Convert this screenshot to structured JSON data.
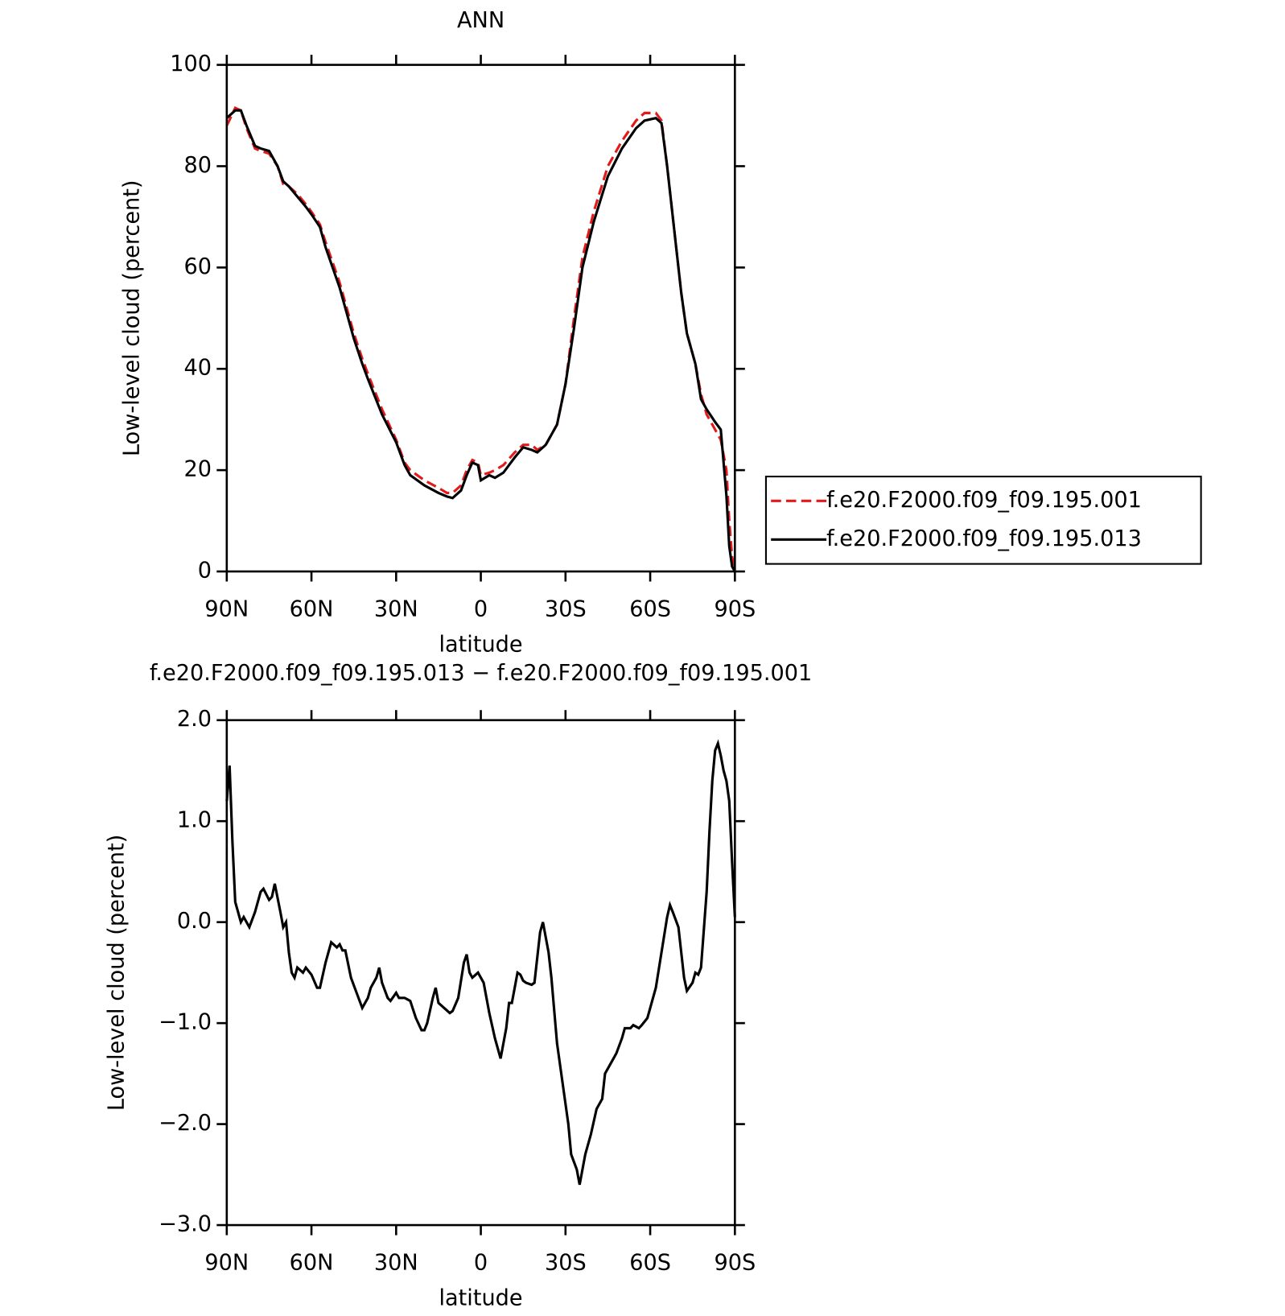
{
  "chart_data": [
    {
      "type": "line",
      "title": "ANN",
      "xlabel": "latitude",
      "ylabel": "Low-level cloud (percent)",
      "x": [
        90,
        87,
        85,
        83,
        80,
        78,
        75,
        72,
        70,
        68,
        65,
        62,
        60,
        57,
        55,
        50,
        45,
        42,
        40,
        35,
        30,
        27,
        25,
        20,
        15,
        12,
        10,
        7,
        5,
        3,
        1,
        0,
        -3,
        -5,
        -8,
        -12,
        -15,
        -18,
        -20,
        -23,
        -27,
        -30,
        -33,
        -36,
        -40,
        -45,
        -50,
        -55,
        -58,
        -62,
        -64,
        -66,
        -69,
        -71,
        -73,
        -76,
        -78,
        -80,
        -83,
        -85,
        -87,
        -88,
        -89,
        -90
      ],
      "series": [
        {
          "name": "f.e20.F2000.f09_f09.195.001",
          "color": "#e31a1c",
          "style": "dashed",
          "values": [
            88,
            91.5,
            91,
            87.5,
            83.5,
            83,
            82.5,
            80,
            76.5,
            76,
            74.5,
            72.5,
            71,
            68.5,
            65,
            57,
            47,
            42,
            39,
            32,
            26,
            21.5,
            20,
            18,
            16.5,
            15.5,
            15.5,
            17,
            20,
            22,
            21.5,
            19,
            19.5,
            20,
            21,
            23.5,
            25,
            25,
            24,
            25,
            29,
            37,
            50,
            62,
            71,
            80,
            85,
            89,
            90.5,
            90.5,
            89,
            80,
            65,
            55,
            47,
            41,
            35,
            31,
            28,
            26,
            20,
            10,
            3,
            0
          ]
        },
        {
          "name": "f.e20.F2000.f09_f09.195.013",
          "color": "#000000",
          "style": "solid",
          "values": [
            89.5,
            91,
            91,
            88,
            84,
            83.5,
            83,
            80,
            77,
            76,
            74,
            72,
            70.5,
            68,
            64,
            56,
            46,
            41,
            38,
            31,
            25.5,
            21,
            19,
            17,
            15.5,
            14.8,
            14.5,
            16,
            19,
            21.5,
            21,
            18,
            19,
            18.5,
            19.5,
            22.5,
            24.5,
            24,
            23.5,
            25,
            29,
            37,
            48,
            60,
            69,
            78,
            83.5,
            87.5,
            89,
            89.5,
            88.5,
            80,
            65,
            55,
            47,
            41,
            34,
            32,
            29.5,
            28,
            15,
            5,
            1,
            0
          ]
        }
      ],
      "xlim": [
        90,
        -90
      ],
      "xticks": [
        {
          "value": 90,
          "label": "90N"
        },
        {
          "value": 60,
          "label": "60N"
        },
        {
          "value": 30,
          "label": "30N"
        },
        0,
        {
          "value": -30,
          "label": "30S"
        },
        {
          "value": -60,
          "label": "60S"
        },
        {
          "value": -90,
          "label": "90S"
        }
      ],
      "ylim": [
        0,
        100
      ],
      "yticks": [
        0,
        20,
        40,
        60,
        80,
        100
      ],
      "legend": "right"
    },
    {
      "type": "line",
      "title": "f.e20.F2000.f09_f09.195.013 − f.e20.F2000.f09_f09.195.001",
      "xlabel": "latitude",
      "ylabel": "Low-level cloud (percent)",
      "x": [
        90,
        89,
        88,
        87,
        85,
        84,
        82,
        80,
        78,
        77,
        75,
        74,
        73,
        71,
        70,
        69,
        68,
        67,
        66,
        65,
        63,
        62,
        60,
        58,
        57,
        55,
        53,
        51,
        50,
        49,
        48,
        46,
        44,
        42,
        40,
        39,
        37,
        36,
        35,
        33,
        32,
        30,
        29,
        27,
        25,
        23,
        21,
        20,
        19,
        17,
        16,
        15,
        13,
        11,
        10,
        8,
        6,
        5,
        4,
        3,
        1,
        -1,
        -3,
        -5,
        -7,
        -9,
        -10,
        -11,
        -13,
        -14,
        -15,
        -16,
        -18,
        -19,
        -21,
        -22,
        -24,
        -25,
        -27,
        -29,
        -31,
        -32,
        -34,
        -35,
        -37,
        -39,
        -41,
        -43,
        -44,
        -46,
        -48,
        -50,
        -51,
        -53,
        -54,
        -56,
        -57,
        -59,
        -60,
        -62,
        -64,
        -66,
        -67,
        -68,
        -70,
        -72,
        -73,
        -75,
        -76,
        -77,
        -78,
        -80,
        -81,
        -82,
        -83,
        -84,
        -85,
        -86,
        -87,
        -88,
        -89,
        -90
      ],
      "series": [
        {
          "color": "#000000",
          "style": "solid",
          "values": [
            1.2,
            1.55,
            0.8,
            0.2,
            0.0,
            0.05,
            -0.05,
            0.1,
            0.3,
            0.33,
            0.22,
            0.25,
            0.38,
            0.1,
            -0.05,
            0.0,
            -0.3,
            -0.5,
            -0.55,
            -0.45,
            -0.5,
            -0.45,
            -0.52,
            -0.65,
            -0.65,
            -0.4,
            -0.2,
            -0.25,
            -0.22,
            -0.28,
            -0.28,
            -0.55,
            -0.7,
            -0.85,
            -0.75,
            -0.65,
            -0.55,
            -0.45,
            -0.6,
            -0.75,
            -0.78,
            -0.7,
            -0.75,
            -0.75,
            -0.78,
            -0.95,
            -1.07,
            -1.07,
            -1.0,
            -0.75,
            -0.65,
            -0.8,
            -0.85,
            -0.9,
            -0.88,
            -0.75,
            -0.4,
            -0.32,
            -0.5,
            -0.55,
            -0.5,
            -0.6,
            -0.9,
            -1.15,
            -1.35,
            -1.05,
            -0.8,
            -0.8,
            -0.5,
            -0.52,
            -0.58,
            -0.6,
            -0.62,
            -0.6,
            -0.1,
            0.0,
            -0.3,
            -0.55,
            -1.2,
            -1.6,
            -2.0,
            -2.3,
            -2.45,
            -2.6,
            -2.3,
            -2.1,
            -1.85,
            -1.75,
            -1.5,
            -1.4,
            -1.3,
            -1.15,
            -1.05,
            -1.05,
            -1.02,
            -1.05,
            -1.02,
            -0.95,
            -0.85,
            -0.65,
            -0.3,
            0.05,
            0.17,
            0.1,
            -0.05,
            -0.55,
            -0.68,
            -0.6,
            -0.5,
            -0.52,
            -0.45,
            0.3,
            0.9,
            1.4,
            1.7,
            1.77,
            1.65,
            1.5,
            1.4,
            1.2,
            0.6,
            0.05
          ]
        }
      ],
      "xlim": [
        90,
        -90
      ],
      "xticks": [
        {
          "value": 90,
          "label": "90N"
        },
        {
          "value": 60,
          "label": "60N"
        },
        {
          "value": 30,
          "label": "30N"
        },
        0,
        {
          "value": -30,
          "label": "30S"
        },
        {
          "value": -60,
          "label": "60S"
        },
        {
          "value": -90,
          "label": "90S"
        }
      ],
      "ylim": [
        -3,
        2
      ],
      "yticks": [
        {
          "value": 2,
          "label": "2.0"
        },
        {
          "value": 1,
          "label": "1.0"
        },
        {
          "value": 0,
          "label": "0.0"
        },
        {
          "value": -1,
          "label": "−1.0"
        },
        {
          "value": -2,
          "label": "−2.0"
        },
        {
          "value": -3,
          "label": "−3.0"
        }
      ]
    }
  ]
}
